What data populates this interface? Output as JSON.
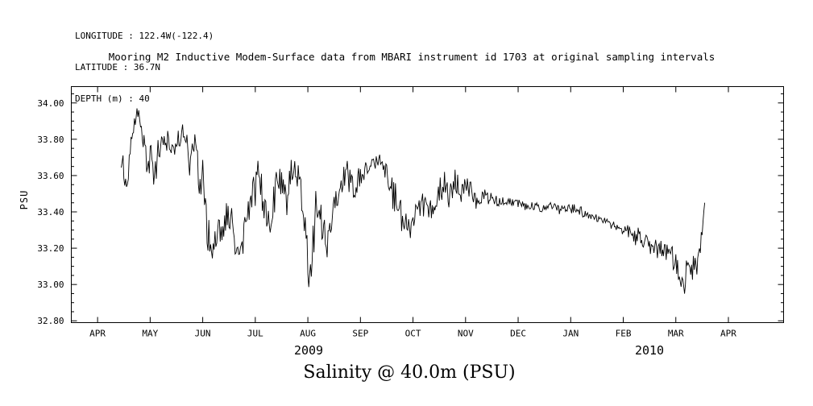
{
  "metadata": {
    "longitude": "LONGITUDE : 122.4W(-122.4)",
    "latitude": "LATITUDE : 36.7N",
    "depth": "DEPTH (m) : 40"
  },
  "caption": "Salinity @ 40.0m (PSU)",
  "colors": {
    "background": "#ffffff",
    "line": "#000000",
    "text": "#000000"
  },
  "chart_data": {
    "type": "line",
    "title": "Mooring M2 Inductive Modem-Surface data from MBARI instrument id 1703 at original sampling intervals",
    "xlabel": "",
    "ylabel": "PSU",
    "grid": false,
    "legend": "none",
    "ylim": [
      32.79,
      34.09
    ],
    "xlim_months": [
      -0.5,
      13.05
    ],
    "line_color": "#000000",
    "y_ticks": [
      {
        "value": 32.8,
        "label": "32.80"
      },
      {
        "value": 33.0,
        "label": "33.00"
      },
      {
        "value": 33.2,
        "label": "33.20"
      },
      {
        "value": 33.4,
        "label": "33.40"
      },
      {
        "value": 33.6,
        "label": "33.60"
      },
      {
        "value": 33.8,
        "label": "33.80"
      },
      {
        "value": 34.0,
        "label": "34.00"
      }
    ],
    "x_ticks": [
      {
        "month": 0,
        "label": "APR"
      },
      {
        "month": 1,
        "label": "MAY"
      },
      {
        "month": 2,
        "label": "JUN"
      },
      {
        "month": 3,
        "label": "JUL"
      },
      {
        "month": 4,
        "label": "AUG"
      },
      {
        "month": 5,
        "label": "SEP"
      },
      {
        "month": 6,
        "label": "OCT"
      },
      {
        "month": 7,
        "label": "NOV"
      },
      {
        "month": 8,
        "label": "DEC"
      },
      {
        "month": 9,
        "label": "JAN"
      },
      {
        "month": 10,
        "label": "FEB"
      },
      {
        "month": 11,
        "label": "MAR"
      },
      {
        "month": 12,
        "label": "APR"
      }
    ],
    "year_labels": [
      {
        "label": "2009",
        "month": 4.0
      },
      {
        "label": "2010",
        "month": 10.5
      }
    ],
    "series": [
      {
        "name": "salinity_psu_40m",
        "note": "anchor points traced from plot: [months_after_Apr1_2009, mean_PSU, noise_amplitude_PSU]",
        "points": [
          [
            0.45,
            33.7,
            0.1
          ],
          [
            0.5,
            33.62,
            0.13
          ],
          [
            0.55,
            33.55,
            0.1
          ],
          [
            0.62,
            33.72,
            0.1
          ],
          [
            0.7,
            33.88,
            0.1
          ],
          [
            0.75,
            33.95,
            0.06
          ],
          [
            0.8,
            33.92,
            0.07
          ],
          [
            0.85,
            33.8,
            0.1
          ],
          [
            0.9,
            33.72,
            0.12
          ],
          [
            0.95,
            33.65,
            0.12
          ],
          [
            1.0,
            33.72,
            0.14
          ],
          [
            1.05,
            33.65,
            0.15
          ],
          [
            1.1,
            33.62,
            0.13
          ],
          [
            1.15,
            33.7,
            0.12
          ],
          [
            1.2,
            33.78,
            0.1
          ],
          [
            1.3,
            33.82,
            0.09
          ],
          [
            1.4,
            33.78,
            0.1
          ],
          [
            1.5,
            33.8,
            0.1
          ],
          [
            1.6,
            33.84,
            0.08
          ],
          [
            1.7,
            33.8,
            0.1
          ],
          [
            1.75,
            33.7,
            0.14
          ],
          [
            1.8,
            33.72,
            0.12
          ],
          [
            1.85,
            33.78,
            0.1
          ],
          [
            1.9,
            33.65,
            0.18
          ],
          [
            1.95,
            33.55,
            0.2
          ],
          [
            2.0,
            33.6,
            0.15
          ],
          [
            2.05,
            33.45,
            0.2
          ],
          [
            2.1,
            33.28,
            0.15
          ],
          [
            2.15,
            33.2,
            0.1
          ],
          [
            2.2,
            33.22,
            0.1
          ],
          [
            2.3,
            33.25,
            0.13
          ],
          [
            2.4,
            33.3,
            0.15
          ],
          [
            2.5,
            33.45,
            0.14
          ],
          [
            2.55,
            33.35,
            0.15
          ],
          [
            2.6,
            33.25,
            0.12
          ],
          [
            2.7,
            33.15,
            0.08
          ],
          [
            2.75,
            33.18,
            0.1
          ],
          [
            2.8,
            33.3,
            0.14
          ],
          [
            2.9,
            33.45,
            0.14
          ],
          [
            3.0,
            33.55,
            0.13
          ],
          [
            3.05,
            33.6,
            0.1
          ],
          [
            3.1,
            33.58,
            0.12
          ],
          [
            3.15,
            33.45,
            0.16
          ],
          [
            3.2,
            33.35,
            0.15
          ],
          [
            3.25,
            33.3,
            0.13
          ],
          [
            3.3,
            33.38,
            0.14
          ],
          [
            3.4,
            33.55,
            0.13
          ],
          [
            3.5,
            33.6,
            0.11
          ],
          [
            3.55,
            33.55,
            0.13
          ],
          [
            3.6,
            33.5,
            0.14
          ],
          [
            3.65,
            33.58,
            0.11
          ],
          [
            3.7,
            33.62,
            0.09
          ],
          [
            3.8,
            33.62,
            0.09
          ],
          [
            3.85,
            33.55,
            0.13
          ],
          [
            3.9,
            33.45,
            0.18
          ],
          [
            3.95,
            33.3,
            0.2
          ],
          [
            4.0,
            33.15,
            0.18
          ],
          [
            4.05,
            33.02,
            0.12
          ],
          [
            4.1,
            33.2,
            0.22
          ],
          [
            4.15,
            33.35,
            0.2
          ],
          [
            4.2,
            33.45,
            0.15
          ],
          [
            4.25,
            33.38,
            0.16
          ],
          [
            4.3,
            33.3,
            0.16
          ],
          [
            4.35,
            33.2,
            0.13
          ],
          [
            4.4,
            33.25,
            0.13
          ],
          [
            4.45,
            33.35,
            0.14
          ],
          [
            4.5,
            33.42,
            0.13
          ],
          [
            4.55,
            33.48,
            0.12
          ],
          [
            4.6,
            33.55,
            0.1
          ],
          [
            4.7,
            33.6,
            0.09
          ],
          [
            4.8,
            33.58,
            0.1
          ],
          [
            4.9,
            33.52,
            0.11
          ],
          [
            5.0,
            33.58,
            0.09
          ],
          [
            5.1,
            33.63,
            0.07
          ],
          [
            5.2,
            33.65,
            0.06
          ],
          [
            5.3,
            33.68,
            0.05
          ],
          [
            5.4,
            33.66,
            0.06
          ],
          [
            5.5,
            33.6,
            0.09
          ],
          [
            5.6,
            33.52,
            0.12
          ],
          [
            5.7,
            33.42,
            0.13
          ],
          [
            5.8,
            33.35,
            0.12
          ],
          [
            5.9,
            33.3,
            0.11
          ],
          [
            6.0,
            33.34,
            0.11
          ],
          [
            6.1,
            33.4,
            0.11
          ],
          [
            6.2,
            33.44,
            0.1
          ],
          [
            6.3,
            33.4,
            0.11
          ],
          [
            6.4,
            33.45,
            0.11
          ],
          [
            6.5,
            33.5,
            0.11
          ],
          [
            6.6,
            33.54,
            0.11
          ],
          [
            6.7,
            33.5,
            0.13
          ],
          [
            6.8,
            33.55,
            0.11
          ],
          [
            6.9,
            33.5,
            0.11
          ],
          [
            7.0,
            33.55,
            0.09
          ],
          [
            7.1,
            33.52,
            0.09
          ],
          [
            7.2,
            33.46,
            0.08
          ],
          [
            7.3,
            33.5,
            0.06
          ],
          [
            7.4,
            33.48,
            0.05
          ],
          [
            7.5,
            33.47,
            0.04
          ],
          [
            7.6,
            33.45,
            0.04
          ],
          [
            7.8,
            33.46,
            0.03
          ],
          [
            8.0,
            33.45,
            0.03
          ],
          [
            8.2,
            33.43,
            0.03
          ],
          [
            8.4,
            33.42,
            0.03
          ],
          [
            8.6,
            33.43,
            0.03
          ],
          [
            8.8,
            33.42,
            0.04
          ],
          [
            9.0,
            33.42,
            0.03
          ],
          [
            9.2,
            33.4,
            0.04
          ],
          [
            9.4,
            33.38,
            0.03
          ],
          [
            9.6,
            33.35,
            0.03
          ],
          [
            9.8,
            33.33,
            0.04
          ],
          [
            10.0,
            33.3,
            0.04
          ],
          [
            10.15,
            33.28,
            0.06
          ],
          [
            10.3,
            33.25,
            0.08
          ],
          [
            10.45,
            33.23,
            0.06
          ],
          [
            10.6,
            33.21,
            0.07
          ],
          [
            10.75,
            33.2,
            0.08
          ],
          [
            10.9,
            33.18,
            0.07
          ],
          [
            11.0,
            33.12,
            0.09
          ],
          [
            11.05,
            33.05,
            0.1
          ],
          [
            11.1,
            32.97,
            0.08
          ],
          [
            11.15,
            33.02,
            0.1
          ],
          [
            11.2,
            33.08,
            0.12
          ],
          [
            11.3,
            33.1,
            0.1
          ],
          [
            11.4,
            33.12,
            0.09
          ],
          [
            11.45,
            33.18,
            0.08
          ],
          [
            11.5,
            33.32,
            0.07
          ],
          [
            11.55,
            33.45,
            0.04
          ]
        ]
      }
    ]
  }
}
